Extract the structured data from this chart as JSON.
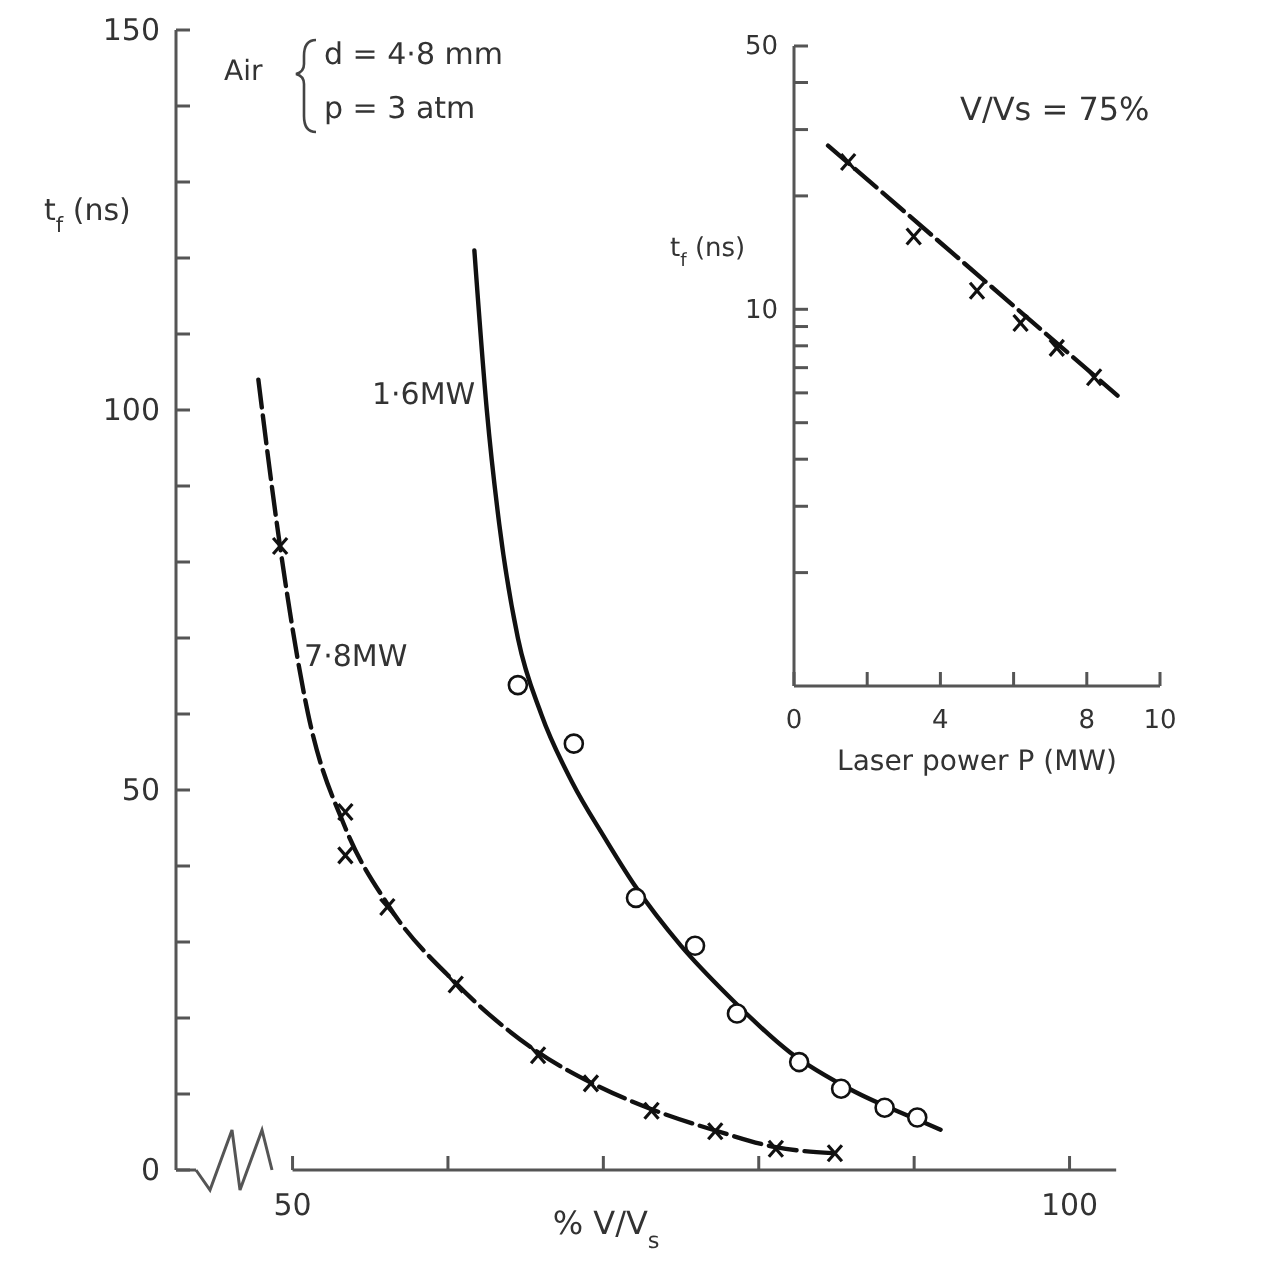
{
  "chart_data": [
    {
      "type": "line",
      "xlabel": "% V/V$_{s}$",
      "ylabel": "t$_{f}$ (ns)",
      "xlim": [
        42.5,
        103
      ],
      "ylim": [
        0,
        150
      ],
      "xticks": [
        50,
        {
          "value": 60,
          "label": null
        },
        {
          "value": 70,
          "label": null
        },
        {
          "value": 80,
          "label": null
        },
        {
          "value": 90,
          "label": null
        },
        100
      ],
      "yticks": [
        0,
        {
          "value": 10,
          "label": null
        },
        {
          "value": 20,
          "label": null
        },
        {
          "value": 30,
          "label": null
        },
        {
          "value": 40,
          "label": null
        },
        50,
        {
          "value": 60,
          "label": null
        },
        {
          "value": 70,
          "label": null
        },
        {
          "value": 80,
          "label": null
        },
        {
          "value": 90,
          "label": null
        },
        100,
        {
          "value": 110,
          "label": null
        },
        {
          "value": 120,
          "label": null
        },
        {
          "value": 130,
          "label": null
        },
        {
          "value": 140,
          "label": null
        },
        150
      ],
      "annotations": [
        "Air",
        "d = 4·8 mm",
        "p = 3 atm"
      ],
      "series": [
        {
          "name": "1·6MW",
          "color": "#111111",
          "line_style": "solid",
          "x": [
            61.7,
            62.5,
            63.3,
            64.5,
            66,
            68,
            70,
            72,
            75,
            78,
            82,
            86,
            90,
            91.7
          ],
          "values": [
            121,
            100,
            85,
            70,
            60,
            51,
            44,
            37.5,
            29.5,
            23,
            15.5,
            10.5,
            6.8,
            5.3
          ]
        },
        {
          "name": "7·8MW",
          "color": "#111111",
          "line_style": "dashed",
          "x": [
            47.8,
            49.2,
            51,
            53.4,
            56.1,
            60.5,
            65.8,
            69.2,
            73.1,
            77.2,
            81.1,
            84.9
          ],
          "values": [
            104,
            82,
            60,
            45,
            35,
            24.6,
            15.5,
            11.5,
            8,
            5.2,
            3,
            2.2
          ]
        },
        {
          "type": "scatter",
          "marker": "circle",
          "color": "#111111",
          "x": [
            64.5,
            68.1,
            72.1,
            75.9,
            78.6,
            82.6,
            85.3,
            88.1,
            90.2
          ],
          "values": [
            63.8,
            56.1,
            35.8,
            29.5,
            20.6,
            14.2,
            10.7,
            8.2,
            6.9
          ]
        },
        {
          "type": "scatter",
          "marker": "cross",
          "color": "#111111",
          "x": [
            49.2,
            53.4,
            53.4,
            56.1,
            60.5,
            65.8,
            69.2,
            73.1,
            77.2,
            81.1,
            84.9
          ],
          "values": [
            82.1,
            47.1,
            41.4,
            34.6,
            24.4,
            15.1,
            11.4,
            7.8,
            5.1,
            2.8,
            2.2
          ]
        }
      ]
    },
    {
      "type": "line",
      "xlabel": "Laser power P (MW)",
      "ylabel": "t$_{f}$ (ns)",
      "log": "y",
      "xlim": [
        0,
        10
      ],
      "ylim": [
        1,
        50
      ],
      "xticks": [
        0,
        {
          "value": 2,
          "label": null
        },
        4,
        {
          "value": 6,
          "label": null
        },
        8,
        10
      ],
      "yticks": [
        {
          "value": 2,
          "label": null
        },
        {
          "value": 3,
          "label": null
        },
        {
          "value": 4,
          "label": null
        },
        {
          "value": 5,
          "label": null
        },
        {
          "value": 6,
          "label": null
        },
        {
          "value": 7,
          "label": null
        },
        {
          "value": 8,
          "label": null
        },
        {
          "value": 9,
          "label": null
        },
        10,
        {
          "value": 20,
          "label": null
        },
        {
          "value": 30,
          "label": null
        },
        {
          "value": 40,
          "label": null
        },
        50
      ],
      "annotations": [
        "V/Vs = 75%"
      ],
      "series": [
        {
          "color": "#111111",
          "line_style": "dashed",
          "x": [
            0.93,
            8.84
          ],
          "values": [
            27.2,
            5.9
          ]
        },
        {
          "type": "scatter",
          "marker": "cross",
          "color": "#111111",
          "x": [
            1.48,
            3.27,
            5.0,
            6.19,
            7.18,
            8.2
          ],
          "values": [
            24.6,
            15.6,
            11.2,
            9.2,
            7.9,
            6.6
          ]
        }
      ]
    }
  ]
}
